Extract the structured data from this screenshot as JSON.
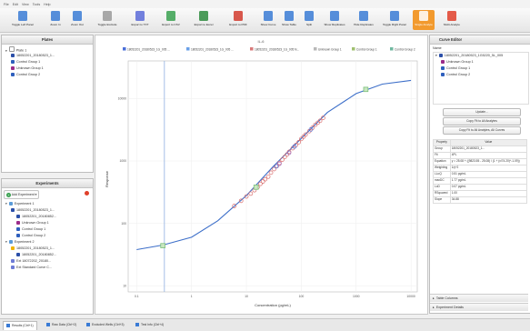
{
  "menu": [
    "File",
    "Edit",
    "View",
    "Tools",
    "Help"
  ],
  "toolbar": [
    {
      "label": "Toggle Left Panel",
      "icon": "panel-left-icon",
      "color": "#3a7bd5"
    },
    {
      "label": "Zoom In",
      "icon": "zoom-in-icon",
      "color": "#3a7bd5"
    },
    {
      "label": "Zoom Out",
      "icon": "zoom-out-icon",
      "color": "#3a7bd5"
    },
    {
      "label": "Toggle Exclude",
      "icon": "exclude-icon",
      "color": "#9a9a9a"
    },
    {
      "label": "Export to TXT",
      "icon": "export-txt-icon",
      "color": "#5b6bd8"
    },
    {
      "label": "Export to CSV",
      "icon": "export-csv-icon",
      "color": "#3aa150"
    },
    {
      "label": "Export to Excel",
      "icon": "export-excel-icon",
      "color": "#2e8b3e"
    },
    {
      "label": "Export to PDF",
      "icon": "export-pdf-icon",
      "color": "#d23b2e"
    },
    {
      "label": "Show Curve",
      "icon": "show-curve-icon",
      "color": "#3a7bd5"
    },
    {
      "label": "Show Table",
      "icon": "show-table-icon",
      "color": "#3a7bd5"
    },
    {
      "label": "Split",
      "icon": "split-icon",
      "color": "#3a7bd5"
    },
    {
      "label": "Show Replicates",
      "icon": "show-replicates-icon",
      "color": "#3a7bd5"
    },
    {
      "label": "Hide Replicates",
      "icon": "hide-replicates-icon",
      "color": "#3a7bd5"
    },
    {
      "label": "Toggle Right Panel",
      "icon": "panel-right-icon",
      "color": "#3a7bd5"
    },
    {
      "label": "Single Analyte",
      "icon": "single-analyte-icon",
      "color": "#ffffff",
      "active": true
    },
    {
      "label": "Multi-Analyte",
      "icon": "multi-analyte-icon",
      "color": "#e0402a"
    }
  ],
  "plates": {
    "title": "Plates",
    "items": [
      {
        "text": "Plate 1",
        "color": "#ffffff",
        "level": 0
      },
      {
        "text": "18052201_20180523_1...",
        "color": "#2b4fa8",
        "level": 1
      },
      {
        "text": "Control Group 1",
        "color": "#2e5fbd",
        "level": 1
      },
      {
        "text": "Unknown Group 1",
        "color": "#9b2b8a",
        "level": 1
      },
      {
        "text": "Control Group 2",
        "color": "#2e5fbd",
        "level": 1
      }
    ]
  },
  "experiments": {
    "title": "Experiments",
    "add_label": "Add Experiment",
    "items": [
      {
        "text": "Experiment 1",
        "color": "#5a9bd8",
        "level": 0
      },
      {
        "text": "18052201_20180523_1...",
        "color": "#2b4fa8",
        "level": 1
      },
      {
        "text": "18052201_20180852...",
        "color": "#2b4fa8",
        "level": 2
      },
      {
        "text": "Unknown Group 1",
        "color": "#9b2b8a",
        "level": 2
      },
      {
        "text": "Control Group 1",
        "color": "#2e5fbd",
        "level": 2
      },
      {
        "text": "Control Group 2",
        "color": "#2e5fbd",
        "level": 2
      },
      {
        "text": "Experiment 2",
        "color": "#5a9bd8",
        "level": 0
      },
      {
        "text": "18052201_20180523_1...",
        "color": "#f0b400",
        "level": 1
      },
      {
        "text": "18052201_20180852...",
        "color": "#2b4fa8",
        "level": 2
      },
      {
        "text": "Ext 18072202_20180...",
        "color": "#6d7bd6",
        "level": 1
      },
      {
        "text": "Ext Standard Curve C...",
        "color": "#6d7bd6",
        "level": 1
      }
    ]
  },
  "chart_header": "IL-6",
  "legend": [
    {
      "label": "18052201_20180523_1G_005 ...",
      "color": "#4a6fd8"
    },
    {
      "label": "18052201_20180523_1G_005 ...",
      "color": "#6aa0e8"
    },
    {
      "label": "18052201_20180523_1G_005 N...",
      "color": "#d87a7a"
    },
    {
      "label": "Unknown Group 1",
      "color": "#b8b8b8"
    },
    {
      "label": "Control Group 1",
      "color": "#a0c070"
    },
    {
      "label": "Control Group 2",
      "color": "#70b8a0"
    }
  ],
  "chart_data": {
    "type": "scatter",
    "xlabel": "Concentration (pg/mL)",
    "ylabel": "Response",
    "x_scale": "log",
    "y_scale": "log",
    "x_ticks": [
      "0.1",
      "1",
      "10",
      "100",
      "1000",
      "10000"
    ],
    "y_ticks": [
      "10",
      "100",
      "1000",
      "10000"
    ],
    "xlim": [
      0.07,
      13000
    ],
    "ylim": [
      8,
      40000
    ],
    "cutoff_x": 0.32,
    "curve": {
      "color": "#3d6fc9",
      "points": [
        [
          0.1,
          38
        ],
        [
          0.3,
          45
        ],
        [
          1,
          60
        ],
        [
          3,
          110
        ],
        [
          10,
          280
        ],
        [
          30,
          800
        ],
        [
          100,
          2300
        ],
        [
          300,
          6000
        ],
        [
          1000,
          12000
        ],
        [
          3000,
          17000
        ],
        [
          10000,
          19500
        ]
      ]
    },
    "standards": {
      "color": "#7cc07c",
      "points": [
        [
          0.3,
          44
        ],
        [
          15,
          380
        ],
        [
          1500,
          14000
        ]
      ]
    },
    "replicates": {
      "color": "#d86a6a",
      "points": [
        [
          6,
          190
        ],
        [
          8,
          230
        ],
        [
          10,
          270
        ],
        [
          12,
          300
        ],
        [
          14,
          340
        ],
        [
          16,
          380
        ],
        [
          18,
          430
        ],
        [
          20,
          470
        ],
        [
          22,
          510
        ],
        [
          25,
          560
        ],
        [
          28,
          650
        ],
        [
          32,
          740
        ],
        [
          36,
          830
        ],
        [
          40,
          930
        ],
        [
          45,
          1050
        ],
        [
          50,
          1160
        ],
        [
          55,
          1270
        ],
        [
          60,
          1400
        ],
        [
          70,
          1600
        ],
        [
          80,
          1800
        ],
        [
          90,
          2000
        ],
        [
          100,
          2250
        ],
        [
          110,
          2450
        ],
        [
          120,
          2650
        ],
        [
          140,
          3000
        ],
        [
          160,
          3400
        ],
        [
          180,
          3800
        ],
        [
          200,
          4100
        ],
        [
          220,
          4400
        ],
        [
          250,
          4900
        ]
      ]
    },
    "controls": {
      "color": "#4a6fd8",
      "points": [
        [
          35,
          820
        ],
        [
          75,
          1700
        ],
        [
          150,
          3200
        ]
      ]
    },
    "unknowns": {
      "color": "#a070c0",
      "points": [
        [
          40,
          900
        ],
        [
          60,
          1350
        ]
      ]
    }
  },
  "right": {
    "title": "Curve Editor",
    "name_header": "Name",
    "tree": [
      {
        "text": "18052201_20180523_1G5220_5L_005",
        "color": "#2b4fa8"
      },
      {
        "text": "Unknown Group 1",
        "color": "#9b2b8a"
      },
      {
        "text": "Control Group 1",
        "color": "#2e5fbd"
      },
      {
        "text": "Control Group 2",
        "color": "#2e5fbd"
      }
    ],
    "buttons": [
      "Update...",
      "Copy Fit to All Analytes",
      "Copy Fit to All Analytes, All Curves"
    ],
    "props_header": [
      "Property",
      "Value"
    ],
    "props": [
      [
        "Group",
        "18052201_20180523_1..."
      ],
      [
        "Fit",
        "4PL"
      ],
      [
        "Equation",
        "y = 25.08 + ((9823.55 - 25.08) / (1 + (x/74.20)^-1.09))"
      ],
      [
        "Weighting",
        "1/y^2"
      ],
      [
        "LLoQ",
        "0.51 pg/mL"
      ],
      [
        "maxDC",
        "1.77 pg/mL"
      ],
      [
        "LoD",
        "0.07 pg/mL"
      ],
      [
        "RSquared",
        "1.00"
      ],
      [
        "Slope",
        "34.88"
      ]
    ],
    "collapsed": [
      "Table Columns",
      "Experiment Details"
    ]
  },
  "status_tabs": [
    {
      "label": "Results (Ctrl+1)",
      "icon": "results-icon",
      "active": true
    },
    {
      "label": "Raw Data (Ctrl+2)",
      "icon": "raw-data-icon",
      "active": false
    },
    {
      "label": "Excluded Wells (Ctrl+3)",
      "icon": "excluded-wells-icon",
      "active": false
    },
    {
      "label": "Test Info (Ctrl+4)",
      "icon": "test-info-icon",
      "active": false
    }
  ]
}
